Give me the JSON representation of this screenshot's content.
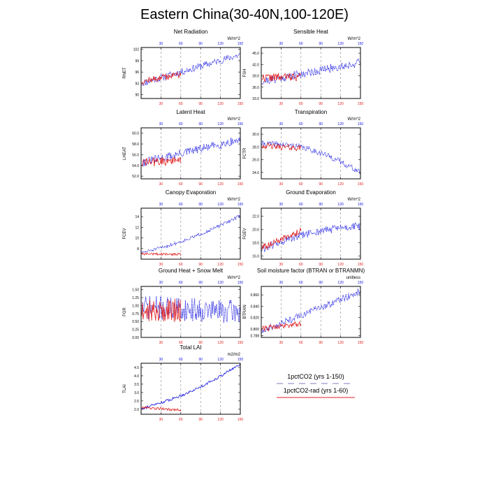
{
  "figure": {
    "title": "Eastern China(30-40N,100-120E)"
  },
  "colors": {
    "run_a": "#1515e0",
    "run_b": "#e02020",
    "grid": "#888888",
    "axis": "#000000"
  },
  "legend": {
    "items": [
      {
        "label": "1pctCO2 (yrs 1-150)",
        "color": "#1515e0",
        "style": "dashed"
      },
      {
        "label": "1pctCO2-rad (yrs 1-60)",
        "color": "#e02020",
        "style": "solid"
      }
    ]
  },
  "chart_data": [
    {
      "type": "line",
      "title": "Net Radiation",
      "units": "W/m^2",
      "ylabel": "RNET",
      "ylim": [
        89,
        102.5
      ],
      "yticks": [
        90,
        93,
        96,
        99,
        102
      ],
      "ytick_labels": [
        "90",
        "93",
        "96",
        "99",
        "102"
      ],
      "xlim": [
        0,
        150
      ],
      "xticks": [
        30,
        60,
        90,
        120,
        150
      ],
      "xtick_labels": [
        "30",
        "60",
        "90",
        "120",
        "150"
      ],
      "series": [
        {
          "x_end": 150,
          "start": 93,
          "end": 100.6,
          "curve": 0,
          "noise": 1.9,
          "seed": 11,
          "dashed": true
        },
        {
          "x_end": 60,
          "start": 93.5,
          "end": 95.5,
          "curve": 0,
          "noise": 1.8,
          "seed": 12,
          "dashed": false
        }
      ]
    },
    {
      "type": "line",
      "title": "Sensible Heat",
      "units": "W/m^2",
      "ylabel": "FSH",
      "ylim": [
        33,
        46.5
      ],
      "yticks": [
        33,
        36,
        39,
        42,
        45
      ],
      "ytick_labels": [
        "33.0",
        "36.0",
        "39.0",
        "42.0",
        "45.0"
      ],
      "xlim": [
        0,
        150
      ],
      "xticks": [
        30,
        60,
        90,
        120,
        150
      ],
      "xtick_labels": [
        "30",
        "60",
        "90",
        "120",
        "150"
      ],
      "series": [
        {
          "x_end": 150,
          "start": 37.5,
          "end": 42.5,
          "curve": 0,
          "noise": 2.3,
          "seed": 21,
          "dashed": true
        },
        {
          "x_end": 60,
          "start": 38.5,
          "end": 38.8,
          "curve": 0,
          "noise": 2.2,
          "seed": 22,
          "dashed": false
        }
      ]
    },
    {
      "type": "line",
      "title": "Latent Heat",
      "units": "W/m^2",
      "ylabel": "LHEAT",
      "ylim": [
        51.5,
        61
      ],
      "yticks": [
        52,
        54,
        56,
        58,
        60
      ],
      "ytick_labels": [
        "52.0",
        "54.0",
        "56.0",
        "58.0",
        "60.0"
      ],
      "xlim": [
        0,
        150
      ],
      "xticks": [
        30,
        60,
        90,
        120,
        150
      ],
      "xtick_labels": [
        "30",
        "60",
        "90",
        "120",
        "150"
      ],
      "series": [
        {
          "x_end": 150,
          "start": 54.5,
          "end": 58.8,
          "curve": 0,
          "noise": 1.6,
          "seed": 31,
          "dashed": true
        },
        {
          "x_end": 60,
          "start": 54.5,
          "end": 55,
          "curve": 0,
          "noise": 1.7,
          "seed": 32,
          "dashed": false
        }
      ]
    },
    {
      "type": "line",
      "title": "Transpiration",
      "units": "W/m^2",
      "ylabel": "FCTR",
      "ylim": [
        23,
        31
      ],
      "yticks": [
        24,
        26,
        28,
        30
      ],
      "ytick_labels": [
        "24.0",
        "26.0",
        "28.0",
        "30.0"
      ],
      "xlim": [
        0,
        150
      ],
      "xticks": [
        30,
        60,
        90,
        120,
        150
      ],
      "xtick_labels": [
        "30",
        "60",
        "90",
        "120",
        "150"
      ],
      "series": [
        {
          "x_end": 150,
          "start": 28.5,
          "end": 24,
          "curve": 1.3,
          "noise": 0.9,
          "seed": 41,
          "dashed": true
        },
        {
          "x_end": 60,
          "start": 28.2,
          "end": 27.8,
          "curve": 0,
          "noise": 0.9,
          "seed": 42,
          "dashed": false
        }
      ]
    },
    {
      "type": "line",
      "title": "Canopy Evaporation",
      "units": "W/m^2",
      "ylabel": "FCEV",
      "ylim": [
        6,
        15.6
      ],
      "yticks": [
        8,
        10,
        12,
        14
      ],
      "ytick_labels": [
        "8",
        "10",
        "12",
        "14"
      ],
      "xlim": [
        0,
        150
      ],
      "xticks": [
        30,
        60,
        90,
        120,
        150
      ],
      "xtick_labels": [
        "30",
        "60",
        "90",
        "120",
        "150"
      ],
      "series": [
        {
          "x_end": 150,
          "start": 7.2,
          "end": 14.2,
          "curve": -0.7,
          "noise": 0.6,
          "seed": 51,
          "dashed": true
        },
        {
          "x_end": 60,
          "start": 7,
          "end": 6.9,
          "curve": 0,
          "noise": 0.45,
          "seed": 52,
          "dashed": false
        }
      ]
    },
    {
      "type": "line",
      "title": "Ground Evaporation",
      "units": "W/m^2",
      "ylabel": "FGEV",
      "ylim": [
        15.5,
        23.2
      ],
      "yticks": [
        16,
        18,
        20,
        22
      ],
      "ytick_labels": [
        "16.0",
        "18.0",
        "20.0",
        "22.0"
      ],
      "xlim": [
        0,
        150
      ],
      "xticks": [
        30,
        60,
        90,
        120,
        150
      ],
      "xtick_labels": [
        "30",
        "60",
        "90",
        "120",
        "150"
      ],
      "series": [
        {
          "x_end": 150,
          "start": 17,
          "end": 20.5,
          "curve": 0.7,
          "noise": 1.2,
          "seed": 61,
          "dashed": true
        },
        {
          "x_end": 60,
          "start": 17.2,
          "end": 19.8,
          "curve": 0,
          "noise": 1,
          "seed": 62,
          "dashed": false
        }
      ]
    },
    {
      "type": "line",
      "title": "Ground Heat + Snow Melt",
      "units": "W/m^2",
      "ylabel": "FGR",
      "ylim": [
        0,
        1.6
      ],
      "yticks": [
        0,
        0.25,
        0.5,
        0.75,
        1,
        1.25,
        1.5
      ],
      "ytick_labels": [
        "0.00",
        "0.25",
        "0.50",
        "0.75",
        "1.00",
        "1.25",
        "1.50"
      ],
      "xlim": [
        0,
        150
      ],
      "xticks": [
        30,
        60,
        90,
        120,
        150
      ],
      "xtick_labels": [
        "30",
        "60",
        "90",
        "120",
        "150"
      ],
      "series": [
        {
          "x_end": 150,
          "start": 0.95,
          "end": 0.8,
          "curve": 0,
          "noise": 0.75,
          "seed": 71,
          "dashed": true
        },
        {
          "x_end": 60,
          "start": 0.85,
          "end": 0.85,
          "curve": 0,
          "noise": 0.75,
          "seed": 72,
          "dashed": false
        }
      ]
    },
    {
      "type": "line",
      "title": "Soil moisture factor (BTRAN or BTRANMN)",
      "units": "unitless",
      "ylabel": "BTRAN",
      "ylim": [
        0.785,
        0.875
      ],
      "yticks": [
        0.788,
        0.8,
        0.82,
        0.84,
        0.86
      ],
      "ytick_labels": [
        "0.788",
        "0.800",
        "0.820",
        "0.840",
        "0.860"
      ],
      "xlim": [
        0,
        150
      ],
      "xticks": [
        30,
        60,
        90,
        120,
        150
      ],
      "xtick_labels": [
        "30",
        "60",
        "90",
        "120",
        "150"
      ],
      "series": [
        {
          "x_end": 150,
          "start": 0.796,
          "end": 0.866,
          "curve": 0,
          "noise": 0.012,
          "seed": 81,
          "dashed": true
        },
        {
          "x_end": 60,
          "start": 0.8,
          "end": 0.81,
          "curve": 0,
          "noise": 0.01,
          "seed": 82,
          "dashed": false
        }
      ]
    },
    {
      "type": "line",
      "title": "Total LAI",
      "units": "m2/m2",
      "ylabel": "TLAI",
      "ylim": [
        1.7,
        4.75
      ],
      "yticks": [
        2,
        2.5,
        3,
        3.5,
        4,
        4.5
      ],
      "ytick_labels": [
        "2.0",
        "2.5",
        "3.0",
        "3.5",
        "4.0",
        "4.5"
      ],
      "xlim": [
        0,
        150
      ],
      "xticks": [
        30,
        60,
        90,
        120,
        150
      ],
      "xtick_labels": [
        "30",
        "60",
        "90",
        "120",
        "150"
      ],
      "series": [
        {
          "x_end": 150,
          "start": 2.05,
          "end": 4.7,
          "curve": -0.3,
          "noise": 0.16,
          "seed": 91,
          "dashed": false
        },
        {
          "x_end": 60,
          "start": 2.1,
          "end": 1.95,
          "curve": 0,
          "noise": 0.15,
          "seed": 92,
          "dashed": false
        }
      ]
    }
  ]
}
